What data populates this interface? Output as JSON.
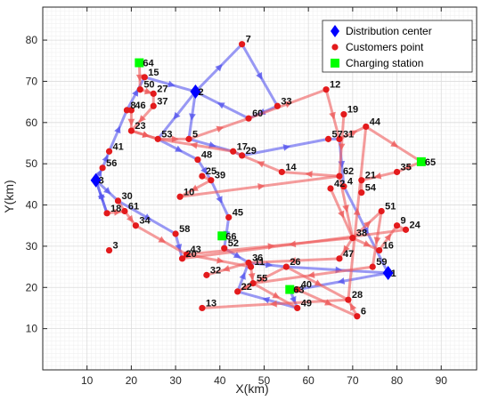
{
  "chart_data": {
    "type": "scatter",
    "xlabel": "X(km)",
    "ylabel": "Y(km)",
    "xlim": [
      0,
      98
    ],
    "ylim": [
      0,
      88
    ],
    "xticks": [
      10,
      20,
      30,
      40,
      50,
      60,
      70,
      80,
      90
    ],
    "yticks": [
      10,
      20,
      30,
      40,
      50,
      60,
      70,
      80
    ],
    "grid": true,
    "legend_position": "top-right",
    "legend": [
      {
        "key": "depot",
        "label": "Distribution center",
        "color": "#0000ff"
      },
      {
        "key": "customer",
        "label": "Customers point",
        "color": "#ff0000"
      },
      {
        "key": "charging",
        "label": "Charging station",
        "color": "#00ff00"
      }
    ],
    "colors": {
      "depot": "#0000ff",
      "customer": "#e31a1c",
      "charging": "#00ff00",
      "route_blue": "#5555ee",
      "route_red": "#ee5a5a"
    },
    "depots": [
      {
        "label": "2",
        "x": 34.5,
        "y": 67.5
      },
      {
        "label": "1",
        "x": 78,
        "y": 23.5
      },
      {
        "label": "3",
        "x": 12,
        "y": 46
      }
    ],
    "charging_stations": [
      {
        "label": "64",
        "x": 21.8,
        "y": 74.5
      },
      {
        "label": "65",
        "x": 85.5,
        "y": 50.5
      },
      {
        "label": "66",
        "x": 40.5,
        "y": 32.5
      },
      {
        "label": "63",
        "x": 55.8,
        "y": 19.5
      }
    ],
    "customers": [
      {
        "label": "7",
        "x": 45,
        "y": 79
      },
      {
        "label": "15",
        "x": 23,
        "y": 71
      },
      {
        "label": "27",
        "x": 25,
        "y": 67
      },
      {
        "label": "50",
        "x": 22,
        "y": 68
      },
      {
        "label": "37",
        "x": 25,
        "y": 64
      },
      {
        "label": "8",
        "x": 19,
        "y": 63
      },
      {
        "label": "46",
        "x": 20,
        "y": 63
      },
      {
        "label": "23",
        "x": 20,
        "y": 58
      },
      {
        "label": "53",
        "x": 26,
        "y": 56
      },
      {
        "label": "5",
        "x": 33,
        "y": 56
      },
      {
        "label": "60",
        "x": 46.5,
        "y": 61
      },
      {
        "label": "33",
        "x": 53,
        "y": 64
      },
      {
        "label": "12",
        "x": 64,
        "y": 68
      },
      {
        "label": "19",
        "x": 68,
        "y": 62
      },
      {
        "label": "44",
        "x": 73,
        "y": 59
      },
      {
        "label": "57",
        "x": 64.5,
        "y": 56
      },
      {
        "label": "31",
        "x": 67,
        "y": 56
      },
      {
        "label": "17",
        "x": 43,
        "y": 53
      },
      {
        "label": "29",
        "x": 45,
        "y": 52
      },
      {
        "label": "48",
        "x": 35,
        "y": 51
      },
      {
        "label": "41",
        "x": 15,
        "y": 53
      },
      {
        "label": "56",
        "x": 13.5,
        "y": 49
      },
      {
        "label": "14",
        "x": 54,
        "y": 48
      },
      {
        "label": "62",
        "x": 67,
        "y": 47
      },
      {
        "label": "35",
        "x": 80,
        "y": 48
      },
      {
        "label": "25",
        "x": 36,
        "y": 47
      },
      {
        "label": "39",
        "x": 38,
        "y": 46
      },
      {
        "label": "21",
        "x": 72,
        "y": 46
      },
      {
        "label": "4",
        "x": 68,
        "y": 44.5
      },
      {
        "label": "42",
        "x": 65,
        "y": 44
      },
      {
        "label": "54",
        "x": 72,
        "y": 43
      },
      {
        "label": "10",
        "x": 31,
        "y": 42
      },
      {
        "label": "30",
        "x": 17,
        "y": 41
      },
      {
        "label": "61",
        "x": 18.5,
        "y": 38.5
      },
      {
        "label": "18",
        "x": 14.5,
        "y": 38
      },
      {
        "label": "51",
        "x": 76.5,
        "y": 38.5
      },
      {
        "label": "45",
        "x": 42,
        "y": 37
      },
      {
        "label": "34",
        "x": 21,
        "y": 35
      },
      {
        "label": "9",
        "x": 80,
        "y": 35
      },
      {
        "label": "24",
        "x": 82,
        "y": 34
      },
      {
        "label": "58",
        "x": 30,
        "y": 33
      },
      {
        "label": "38",
        "x": 70,
        "y": 32
      },
      {
        "label": "52",
        "x": 41,
        "y": 29.5
      },
      {
        "label": "16",
        "x": 76,
        "y": 29
      },
      {
        "label": "3",
        "x": 15,
        "y": 29
      },
      {
        "label": "43",
        "x": 32.5,
        "y": 28
      },
      {
        "label": "20",
        "x": 31.5,
        "y": 27
      },
      {
        "label": "47",
        "x": 67,
        "y": 27
      },
      {
        "label": "36",
        "x": 46.5,
        "y": 26
      },
      {
        "label": "11",
        "x": 47,
        "y": 25
      },
      {
        "label": "26",
        "x": 55,
        "y": 25
      },
      {
        "label": "59",
        "x": 74.5,
        "y": 25
      },
      {
        "label": "32",
        "x": 37,
        "y": 23
      },
      {
        "label": "55",
        "x": 47.5,
        "y": 21
      },
      {
        "label": "22",
        "x": 44,
        "y": 19
      },
      {
        "label": "40",
        "x": 57.5,
        "y": 19.5
      },
      {
        "label": "28",
        "x": 69,
        "y": 17
      },
      {
        "label": "13",
        "x": 36,
        "y": 15
      },
      {
        "label": "49",
        "x": 57.5,
        "y": 15
      },
      {
        "label": "6",
        "x": 71,
        "y": 13
      }
    ],
    "routes": [
      {
        "color": "route_blue",
        "points": [
          "2",
          "7",
          "33",
          "60",
          "2"
        ]
      },
      {
        "color": "route_blue",
        "points": [
          "2",
          "5",
          "17",
          "29",
          "57",
          "31",
          "4",
          "1"
        ]
      },
      {
        "color": "route_blue",
        "points": [
          "3",
          "56",
          "41",
          "8",
          "15",
          "2"
        ]
      },
      {
        "color": "route_blue",
        "points": [
          "2",
          "53",
          "48",
          "39",
          "45",
          "52",
          "36",
          "26",
          "1"
        ]
      },
      {
        "color": "route_blue",
        "points": [
          "1",
          "40",
          "63",
          "49",
          "22",
          "36"
        ]
      },
      {
        "color": "route_blue",
        "points": [
          "3",
          "18",
          "3"
        ]
      },
      {
        "color": "route_blue",
        "points": [
          "3",
          "30",
          "58",
          "20"
        ]
      },
      {
        "color": "route_red",
        "points": [
          "64",
          "50",
          "27",
          "37",
          "23",
          "53"
        ]
      },
      {
        "color": "route_red",
        "points": [
          "46",
          "23",
          "53",
          "5",
          "60",
          "12",
          "31",
          "44",
          "65",
          "35",
          "21",
          "54"
        ]
      },
      {
        "color": "route_red",
        "points": [
          "19",
          "62",
          "14",
          "29",
          "17",
          "53"
        ]
      },
      {
        "color": "route_red",
        "points": [
          "42",
          "38",
          "16",
          "9",
          "24",
          "20"
        ]
      },
      {
        "color": "route_red",
        "points": [
          "10",
          "62",
          "38",
          "47",
          "36",
          "32"
        ]
      },
      {
        "color": "route_red",
        "points": [
          "25",
          "39",
          "10"
        ]
      },
      {
        "color": "route_red",
        "points": [
          "61",
          "34",
          "43",
          "38",
          "51",
          "59",
          "55",
          "22",
          "26",
          "28",
          "13"
        ]
      },
      {
        "color": "route_red",
        "points": [
          "40",
          "6",
          "28",
          "44"
        ]
      },
      {
        "color": "route_red",
        "points": [
          "18",
          "61",
          "30"
        ]
      },
      {
        "color": "route_red",
        "points": [
          "20",
          "43",
          "11",
          "55",
          "49"
        ]
      }
    ]
  }
}
